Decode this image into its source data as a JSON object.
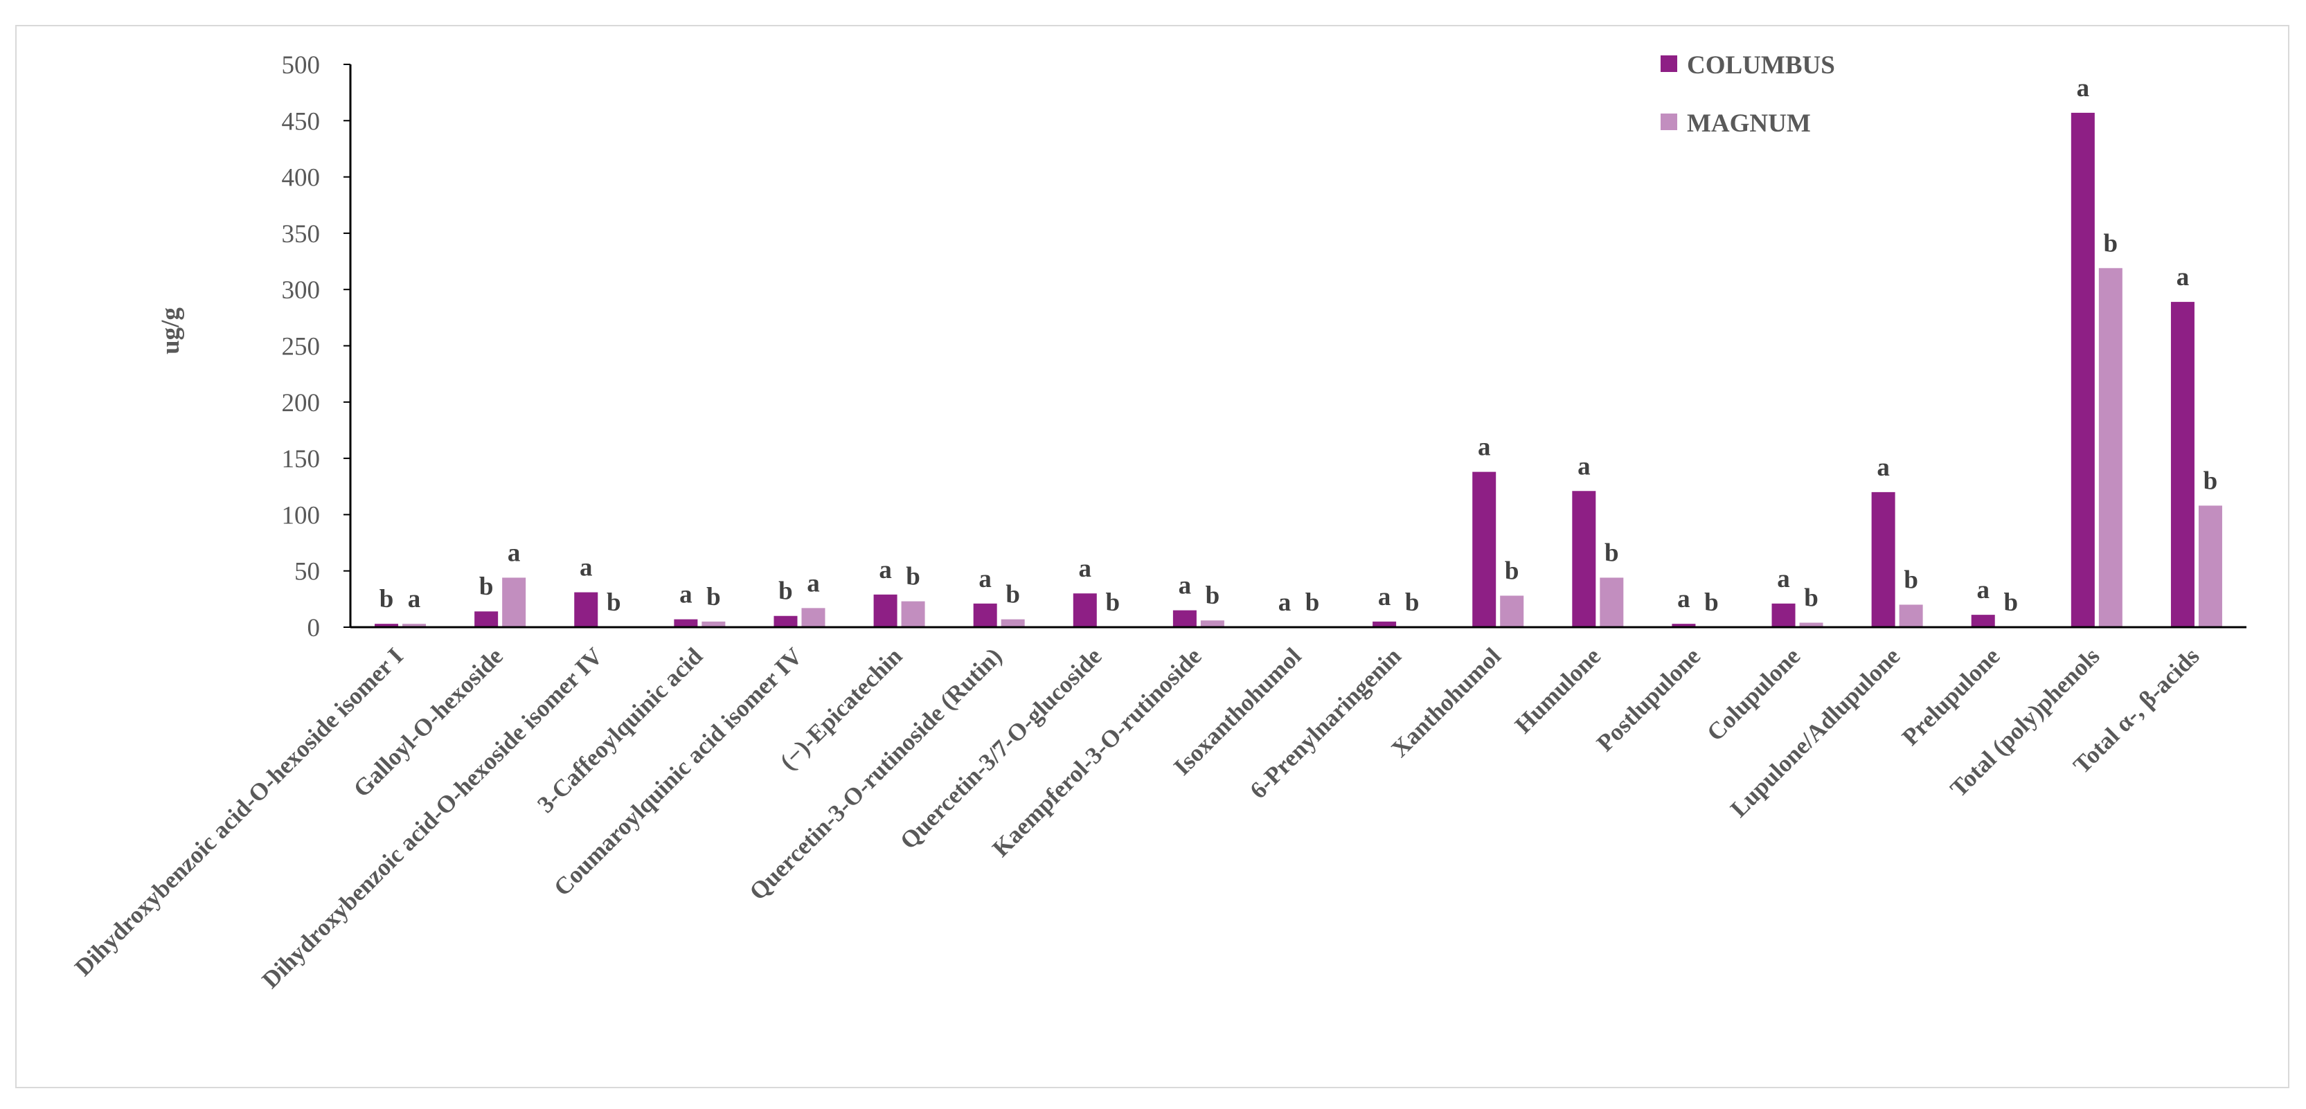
{
  "chart_data": {
    "type": "bar",
    "title": "",
    "xlabel": "",
    "ylabel": "ug/g",
    "ylim": [
      0,
      500
    ],
    "yticks": [
      0,
      50,
      100,
      150,
      200,
      250,
      300,
      350,
      400,
      450,
      500
    ],
    "ytick_labels": [
      "0",
      "50",
      "100",
      "150",
      "200",
      "250",
      "300",
      "350",
      "400",
      "450",
      "500"
    ],
    "grid": false,
    "legend_position": "top-right",
    "categories": [
      "Dihydroxybenzoic acid-O-hexoside isomer I",
      "Galloyl-O-hexoside",
      "Dihydroxybenzoic acid-O-hexoside isomer IV",
      "3-Caffeoylquinic acid",
      "Coumaroylquinic acid isomer IV",
      "(−)-Epicatechin",
      "Quercetin-3-O-rutinoside (Rutin)",
      "Quercetin-3/7-O-glucoside",
      "Kaempferol-3-O-rutinoside",
      "Isoxanthohumol",
      "6-Prenylnaringenin",
      "Xanthohumol",
      "Humulone",
      "Postlupulone",
      "Colupulone",
      "Lupulone/Adlupulone",
      "Prelupulone",
      "Total (poly)phenols",
      "Total α-, β-acids"
    ],
    "series": [
      {
        "name": "COLUMBUS",
        "color": "#8E1F85",
        "values": [
          3,
          14,
          31,
          7,
          10,
          29,
          21,
          30,
          15,
          0,
          5,
          138,
          121,
          3,
          21,
          120,
          11,
          457,
          289
        ],
        "labels": [
          "b",
          "b",
          "a",
          "a",
          "b",
          "a",
          "a",
          "a",
          "a",
          "a",
          "a",
          "a",
          "a",
          "a",
          "a",
          "a",
          "a",
          "a",
          "a"
        ]
      },
      {
        "name": "MAGNUM",
        "color": "#C28EBF",
        "values": [
          3,
          44,
          0,
          5,
          17,
          23,
          7,
          0,
          6,
          0,
          0,
          28,
          44,
          0,
          4,
          20,
          0,
          319,
          108
        ],
        "labels": [
          "a",
          "a",
          "b",
          "b",
          "a",
          "b",
          "b",
          "b",
          "b",
          "b",
          "b",
          "b",
          "b",
          "b",
          "b",
          "b",
          "b",
          "b",
          "b"
        ]
      }
    ]
  }
}
